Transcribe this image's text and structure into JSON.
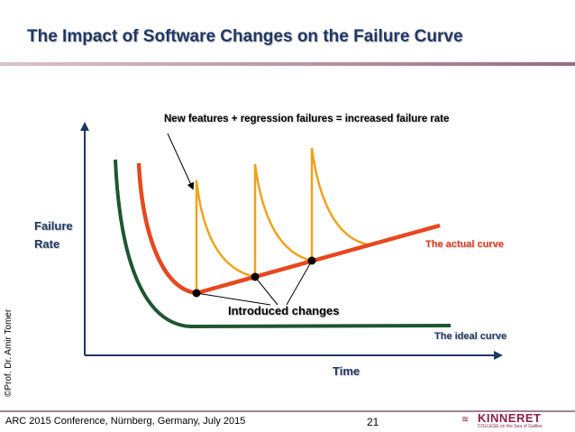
{
  "header": {
    "title": "The Impact of Software Changes on the Failure Curve"
  },
  "diagram": {
    "y_axis_label_line1": "Failure",
    "y_axis_label_line2": "Rate",
    "x_axis_label": "Time",
    "formula_annotation": "New features + regression failures = increased failure rate",
    "actual_curve_label": "The actual curve",
    "ideal_curve_label": "The ideal curve",
    "introduced_changes_label": "Introduced changes",
    "colors": {
      "actual": "#e8471f",
      "spikes": "#f2a21c",
      "ideal": "#1e5631",
      "axis": "#1f3864"
    }
  },
  "side": {
    "credit": "©Prof. Dr. Amir Tomer"
  },
  "footer": {
    "conference": "ARC 2015 Conference, Nürnberg, Germany, July 2015",
    "page_number": "21",
    "logo_word": "KINNERET",
    "logo_sub": "COLLEGE on the Sea of Galilee"
  }
}
